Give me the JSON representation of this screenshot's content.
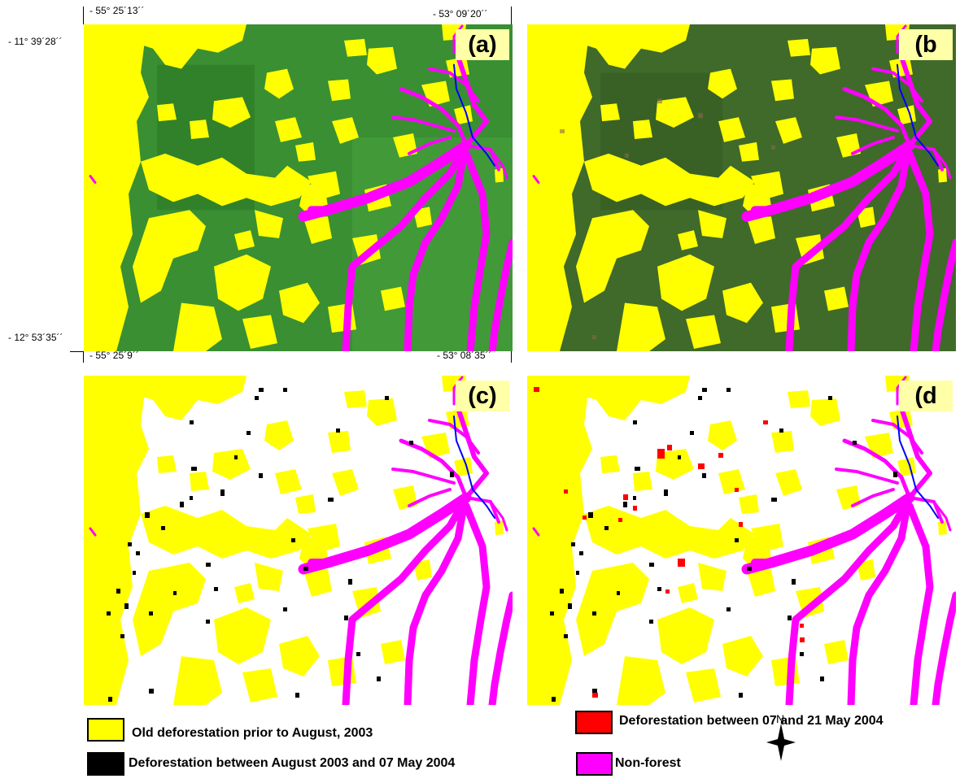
{
  "panels": {
    "a": {
      "label": "(a)"
    },
    "b": {
      "label": "(b"
    },
    "c": {
      "label": "(c)"
    },
    "d": {
      "label": "(d"
    }
  },
  "coords": {
    "top_left_lon": "- 55° 25´13´´",
    "top_right_lon": "- 53° 09´20´´",
    "left_top_lat": "- 11° 39´28´´",
    "left_bottom_lat": "- 12° 53´35´´",
    "bottom_left_lon": "- 55° 25´9´´",
    "bottom_right_lon": "- 53° 08´35´´"
  },
  "legend": {
    "old_deforestation": "Old deforestation prior to August, 2003",
    "deforestation_aug_may": "Deforestation between August 2003 and 07 May 2004",
    "deforestation_may": "Deforestation between 07 and 21 May 2004",
    "non_forest": "Non-forest"
  },
  "north": {
    "label": "N"
  },
  "colors": {
    "old_deforestation": "#ffff00",
    "deforestation_aug_may": "#000000",
    "deforestation_may": "#ff0000",
    "non_forest": "#ff00ff",
    "river": "#0000ff",
    "forest_a": "#3a8f32",
    "forest_b": "#3f6a2a",
    "forest_cd": "#ffffff",
    "label_bg": "#ffffa8"
  }
}
